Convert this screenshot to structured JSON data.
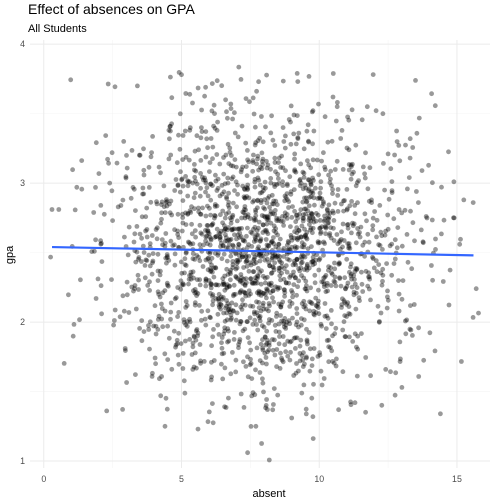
{
  "chart_data": {
    "type": "scatter",
    "title": "Effect of absences on GPA",
    "subtitle": "All Students",
    "xlabel": "absent",
    "ylabel": "gpa",
    "xlim": [
      -0.5,
      16.2
    ],
    "ylim": [
      0.95,
      4.03
    ],
    "x_ticks": [
      0,
      5,
      10,
      15
    ],
    "y_ticks": [
      1,
      2,
      3,
      4
    ],
    "x_tick_labels": [
      "0",
      "5",
      "10",
      "15"
    ],
    "y_tick_labels": [
      "1",
      "2",
      "3",
      "4"
    ],
    "grid": true,
    "point_color": "#000000",
    "point_opacity": 0.4,
    "approx_point_count": 2000,
    "x_center": 7.9,
    "x_sd": 2.7,
    "y_center": 2.5,
    "y_sd": 0.5,
    "trend_line": {
      "color": "#3366ff",
      "x": [
        0.3,
        15.6
      ],
      "y": [
        2.54,
        2.48
      ]
    },
    "x": [
      0.3,
      1.2,
      1.9,
      2.1,
      2.5,
      2.9,
      3.4,
      4.4,
      4.5,
      4.6,
      5.0,
      5.3,
      5.6,
      6.6,
      7.4,
      7.7,
      7.8,
      9.0,
      9.2,
      9.6,
      10.5,
      11.3,
      11.9,
      12.2,
      12.5,
      12.9,
      13.0,
      13.3,
      13.6,
      14.4,
      14.9,
      15.1,
      15.7
    ],
    "y": [
      2.81,
      2.97,
      2.17,
      2.06,
      2.73,
      3.3,
      3.7,
      1.25,
      1.73,
      2.02,
      3.78,
      3.38,
      1.23,
      3.6,
      1.06,
      1.25,
      3.73,
      1.31,
      3.79,
      3.42,
      3.62,
      1.42,
      2.86,
      2.84,
      3.21,
      2.08,
      1.53,
      3.18,
      2.86,
      1.34,
      2.75,
      2.56,
      2.24
    ]
  }
}
